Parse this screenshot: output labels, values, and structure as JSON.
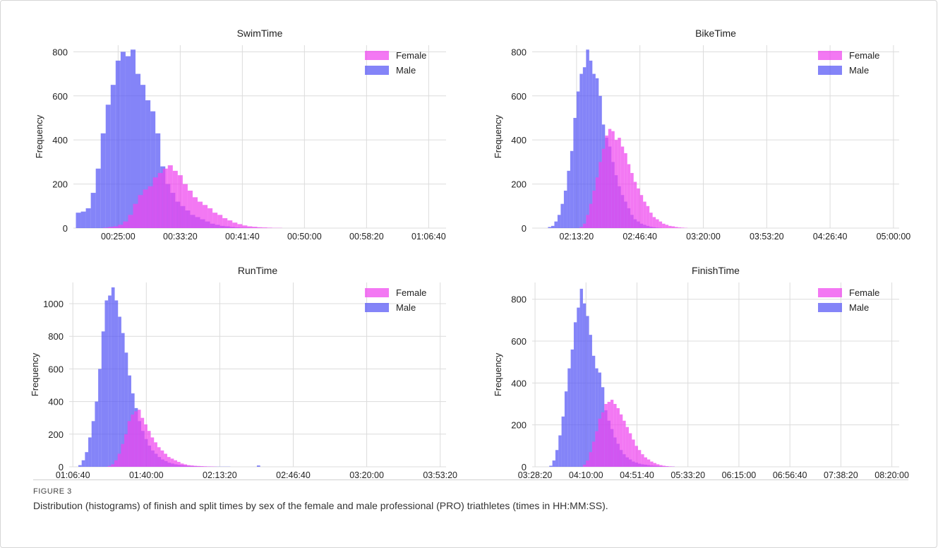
{
  "chart_data": [
    {
      "type": "bar",
      "title": "SwimTime",
      "xlabel": "",
      "ylabel": "Frequency",
      "xlim": [
        "00:19:00",
        "01:09:00"
      ],
      "ylim": [
        0,
        830
      ],
      "xticks": [
        "00:25:00",
        "00:33:20",
        "00:41:40",
        "00:50:00",
        "00:58:20",
        "01:06:40"
      ],
      "yticks": [
        0,
        200,
        400,
        600,
        800
      ],
      "grid": true,
      "legend": "top-right",
      "colors": {
        "Female": "#ee44ee",
        "Male": "#5555f5"
      },
      "series": [
        {
          "name": "Female",
          "x": [
            1380,
            1420,
            1460,
            1500,
            1540,
            1580,
            1620,
            1660,
            1700,
            1740,
            1780,
            1820,
            1860,
            1900,
            1940,
            1980,
            2020,
            2060,
            2100,
            2140,
            2180,
            2220,
            2260,
            2300,
            2340,
            2380,
            2420,
            2460,
            2500,
            2540,
            2580,
            2620,
            2660,
            2700,
            2740,
            2780
          ],
          "values": [
            2,
            5,
            8,
            15,
            30,
            60,
            110,
            150,
            175,
            190,
            230,
            250,
            270,
            285,
            260,
            240,
            200,
            170,
            140,
            120,
            105,
            90,
            70,
            60,
            45,
            35,
            25,
            18,
            12,
            8,
            6,
            4,
            3,
            2,
            1,
            1
          ]
        },
        {
          "name": "Male",
          "x": [
            1160,
            1200,
            1240,
            1280,
            1320,
            1360,
            1400,
            1440,
            1480,
            1520,
            1560,
            1600,
            1640,
            1680,
            1720,
            1760,
            1800,
            1840,
            1880,
            1920,
            1960,
            2000,
            2040,
            2080,
            2120,
            2160,
            2200,
            2240,
            2280,
            2320,
            2360,
            2400,
            2440,
            2480,
            2520,
            2560,
            2600
          ],
          "values": [
            70,
            75,
            90,
            160,
            270,
            430,
            560,
            650,
            760,
            800,
            780,
            810,
            700,
            650,
            580,
            530,
            430,
            280,
            200,
            160,
            120,
            100,
            80,
            60,
            50,
            40,
            30,
            20,
            15,
            10,
            8,
            5,
            3,
            2,
            2,
            1,
            1
          ]
        }
      ]
    },
    {
      "type": "bar",
      "title": "BikeTime",
      "xlabel": "",
      "ylabel": "Frequency",
      "xlim": [
        "01:50:00",
        "05:03:00"
      ],
      "ylim": [
        0,
        830
      ],
      "xticks": [
        "02:13:20",
        "02:46:40",
        "03:20:00",
        "03:53:20",
        "04:26:40",
        "05:00:00"
      ],
      "yticks": [
        0,
        200,
        400,
        600,
        800
      ],
      "grid": true,
      "legend": "top-right",
      "colors": {
        "Female": "#ee44ee",
        "Male": "#5555f5"
      },
      "series": [
        {
          "name": "Female",
          "x": [
            8100,
            8200,
            8300,
            8400,
            8500,
            8600,
            8700,
            8800,
            8900,
            9000,
            9100,
            9200,
            9300,
            9400,
            9500,
            9600,
            9700,
            9800,
            9900,
            10000,
            10100,
            10200,
            10300,
            10400,
            10500,
            10600,
            10700,
            10800,
            10900,
            11000,
            11100,
            11200,
            11300,
            11400
          ],
          "values": [
            5,
            20,
            60,
            110,
            170,
            230,
            300,
            360,
            420,
            450,
            440,
            400,
            410,
            370,
            340,
            290,
            250,
            210,
            180,
            150,
            120,
            100,
            70,
            50,
            40,
            30,
            20,
            15,
            10,
            8,
            5,
            3,
            2,
            1
          ]
        },
        {
          "name": "Male",
          "x": [
            7100,
            7200,
            7300,
            7400,
            7500,
            7600,
            7700,
            7800,
            7900,
            8000,
            8100,
            8200,
            8300,
            8400,
            8500,
            8600,
            8700,
            8800,
            8900,
            9000,
            9100,
            9200,
            9300,
            9400,
            9500,
            9600,
            9700,
            9800,
            9900,
            10000,
            10100,
            10200,
            10300,
            10400,
            10500,
            10600
          ],
          "values": [
            5,
            10,
            30,
            60,
            110,
            170,
            260,
            350,
            500,
            620,
            700,
            730,
            810,
            760,
            700,
            680,
            600,
            470,
            410,
            370,
            300,
            240,
            190,
            150,
            120,
            90,
            60,
            40,
            30,
            20,
            15,
            10,
            6,
            4,
            2,
            1
          ]
        }
      ]
    },
    {
      "type": "bar",
      "title": "RunTime",
      "xlabel": "",
      "ylabel": "Frequency",
      "xlim": [
        "01:05:00",
        "03:56:00"
      ],
      "ylim": [
        0,
        1130
      ],
      "xticks": [
        "01:06:40",
        "01:40:00",
        "02:13:20",
        "02:46:40",
        "03:20:00",
        "03:53:20"
      ],
      "yticks": [
        0,
        200,
        400,
        600,
        800,
        1000
      ],
      "grid": true,
      "legend": "top-right",
      "colors": {
        "Female": "#ee44ee",
        "Male": "#5555f5"
      },
      "series": [
        {
          "name": "Female",
          "x": [
            4950,
            5040,
            5130,
            5220,
            5310,
            5400,
            5490,
            5580,
            5670,
            5760,
            5850,
            5940,
            6030,
            6120,
            6210,
            6300,
            6390,
            6480,
            6570,
            6660,
            6750,
            6840,
            6930,
            7020,
            7110,
            7200,
            7290,
            7380,
            7470,
            7560,
            7650,
            7740,
            7830
          ],
          "values": [
            5,
            15,
            40,
            80,
            140,
            200,
            280,
            320,
            340,
            350,
            300,
            260,
            220,
            180,
            150,
            120,
            100,
            80,
            60,
            50,
            40,
            30,
            20,
            15,
            10,
            8,
            6,
            5,
            4,
            3,
            2,
            2,
            1
          ]
        },
        {
          "name": "Male",
          "x": [
            4150,
            4240,
            4330,
            4420,
            4510,
            4600,
            4690,
            4780,
            4870,
            4960,
            5050,
            5140,
            5230,
            5320,
            5410,
            5500,
            5590,
            5680,
            5770,
            5860,
            5950,
            6040,
            6130,
            6220,
            6310,
            6400,
            6490,
            6580,
            6670,
            6760,
            6850,
            6940,
            7030,
            7120,
            7210,
            7300,
            7390,
            7480,
            7570,
            7660,
            7750,
            7840,
            7930,
            8020,
            8110,
            8200,
            8290,
            8380,
            8470,
            8560,
            8650,
            8740,
            8830,
            8920,
            9010
          ],
          "values": [
            10,
            40,
            90,
            180,
            280,
            400,
            600,
            830,
            1020,
            1050,
            1100,
            1020,
            920,
            820,
            700,
            560,
            450,
            360,
            280,
            220,
            170,
            130,
            100,
            80,
            60,
            45,
            35,
            25,
            20,
            15,
            12,
            10,
            8,
            6,
            5,
            4,
            3,
            2,
            2,
            2,
            1,
            1,
            1,
            1,
            1,
            1,
            0,
            0,
            0,
            0,
            0,
            0,
            0,
            0,
            8
          ]
        }
      ]
    },
    {
      "type": "bar",
      "title": "FinishTime",
      "xlabel": "",
      "ylabel": "Frequency",
      "xlim": [
        "03:26:00",
        "08:26:00"
      ],
      "ylim": [
        0,
        880
      ],
      "xticks": [
        "03:28:20",
        "04:10:00",
        "04:51:40",
        "05:33:20",
        "06:15:00",
        "06:56:40",
        "07:38:20",
        "08:20:00"
      ],
      "yticks": [
        0,
        200,
        400,
        600,
        800
      ],
      "grid": true,
      "legend": "top-right",
      "colors": {
        "Female": "#ee44ee",
        "Male": "#5555f5"
      },
      "series": [
        {
          "name": "Female",
          "x": [
            14850,
            15000,
            15150,
            15300,
            15450,
            15600,
            15750,
            15900,
            16050,
            16200,
            16350,
            16500,
            16650,
            16800,
            16950,
            17100,
            17250,
            17400,
            17550,
            17700,
            17850,
            18000,
            18150,
            18300,
            18450,
            18600,
            18750,
            18900,
            19050,
            19200
          ],
          "values": [
            10,
            30,
            70,
            120,
            170,
            230,
            260,
            300,
            310,
            320,
            300,
            280,
            250,
            220,
            190,
            160,
            130,
            100,
            80,
            60,
            45,
            35,
            25,
            18,
            12,
            8,
            5,
            3,
            2,
            1
          ]
        },
        {
          "name": "Male",
          "x": [
            13200,
            13350,
            13500,
            13650,
            13800,
            13950,
            14100,
            14250,
            14400,
            14550,
            14700,
            14850,
            15000,
            15150,
            15300,
            15450,
            15600,
            15750,
            15900,
            16050,
            16200,
            16350,
            16500,
            16650,
            16800,
            16950,
            17100,
            17250,
            17400,
            17550,
            17700,
            17850,
            18000,
            18150,
            18300,
            18450,
            18600,
            18750,
            18900,
            19050,
            19200
          ],
          "values": [
            5,
            30,
            80,
            150,
            240,
            360,
            470,
            560,
            690,
            760,
            850,
            780,
            720,
            630,
            530,
            470,
            450,
            380,
            270,
            220,
            180,
            140,
            110,
            80,
            60,
            45,
            35,
            25,
            20,
            15,
            12,
            10,
            8,
            6,
            5,
            4,
            3,
            2,
            2,
            1,
            1
          ]
        }
      ]
    }
  ],
  "caption": {
    "label": "FIGURE 3",
    "text": "Distribution (histograms) of finish and split times by sex of the female and male professional (PRO) triathletes (times in HH:MM:SS)."
  }
}
